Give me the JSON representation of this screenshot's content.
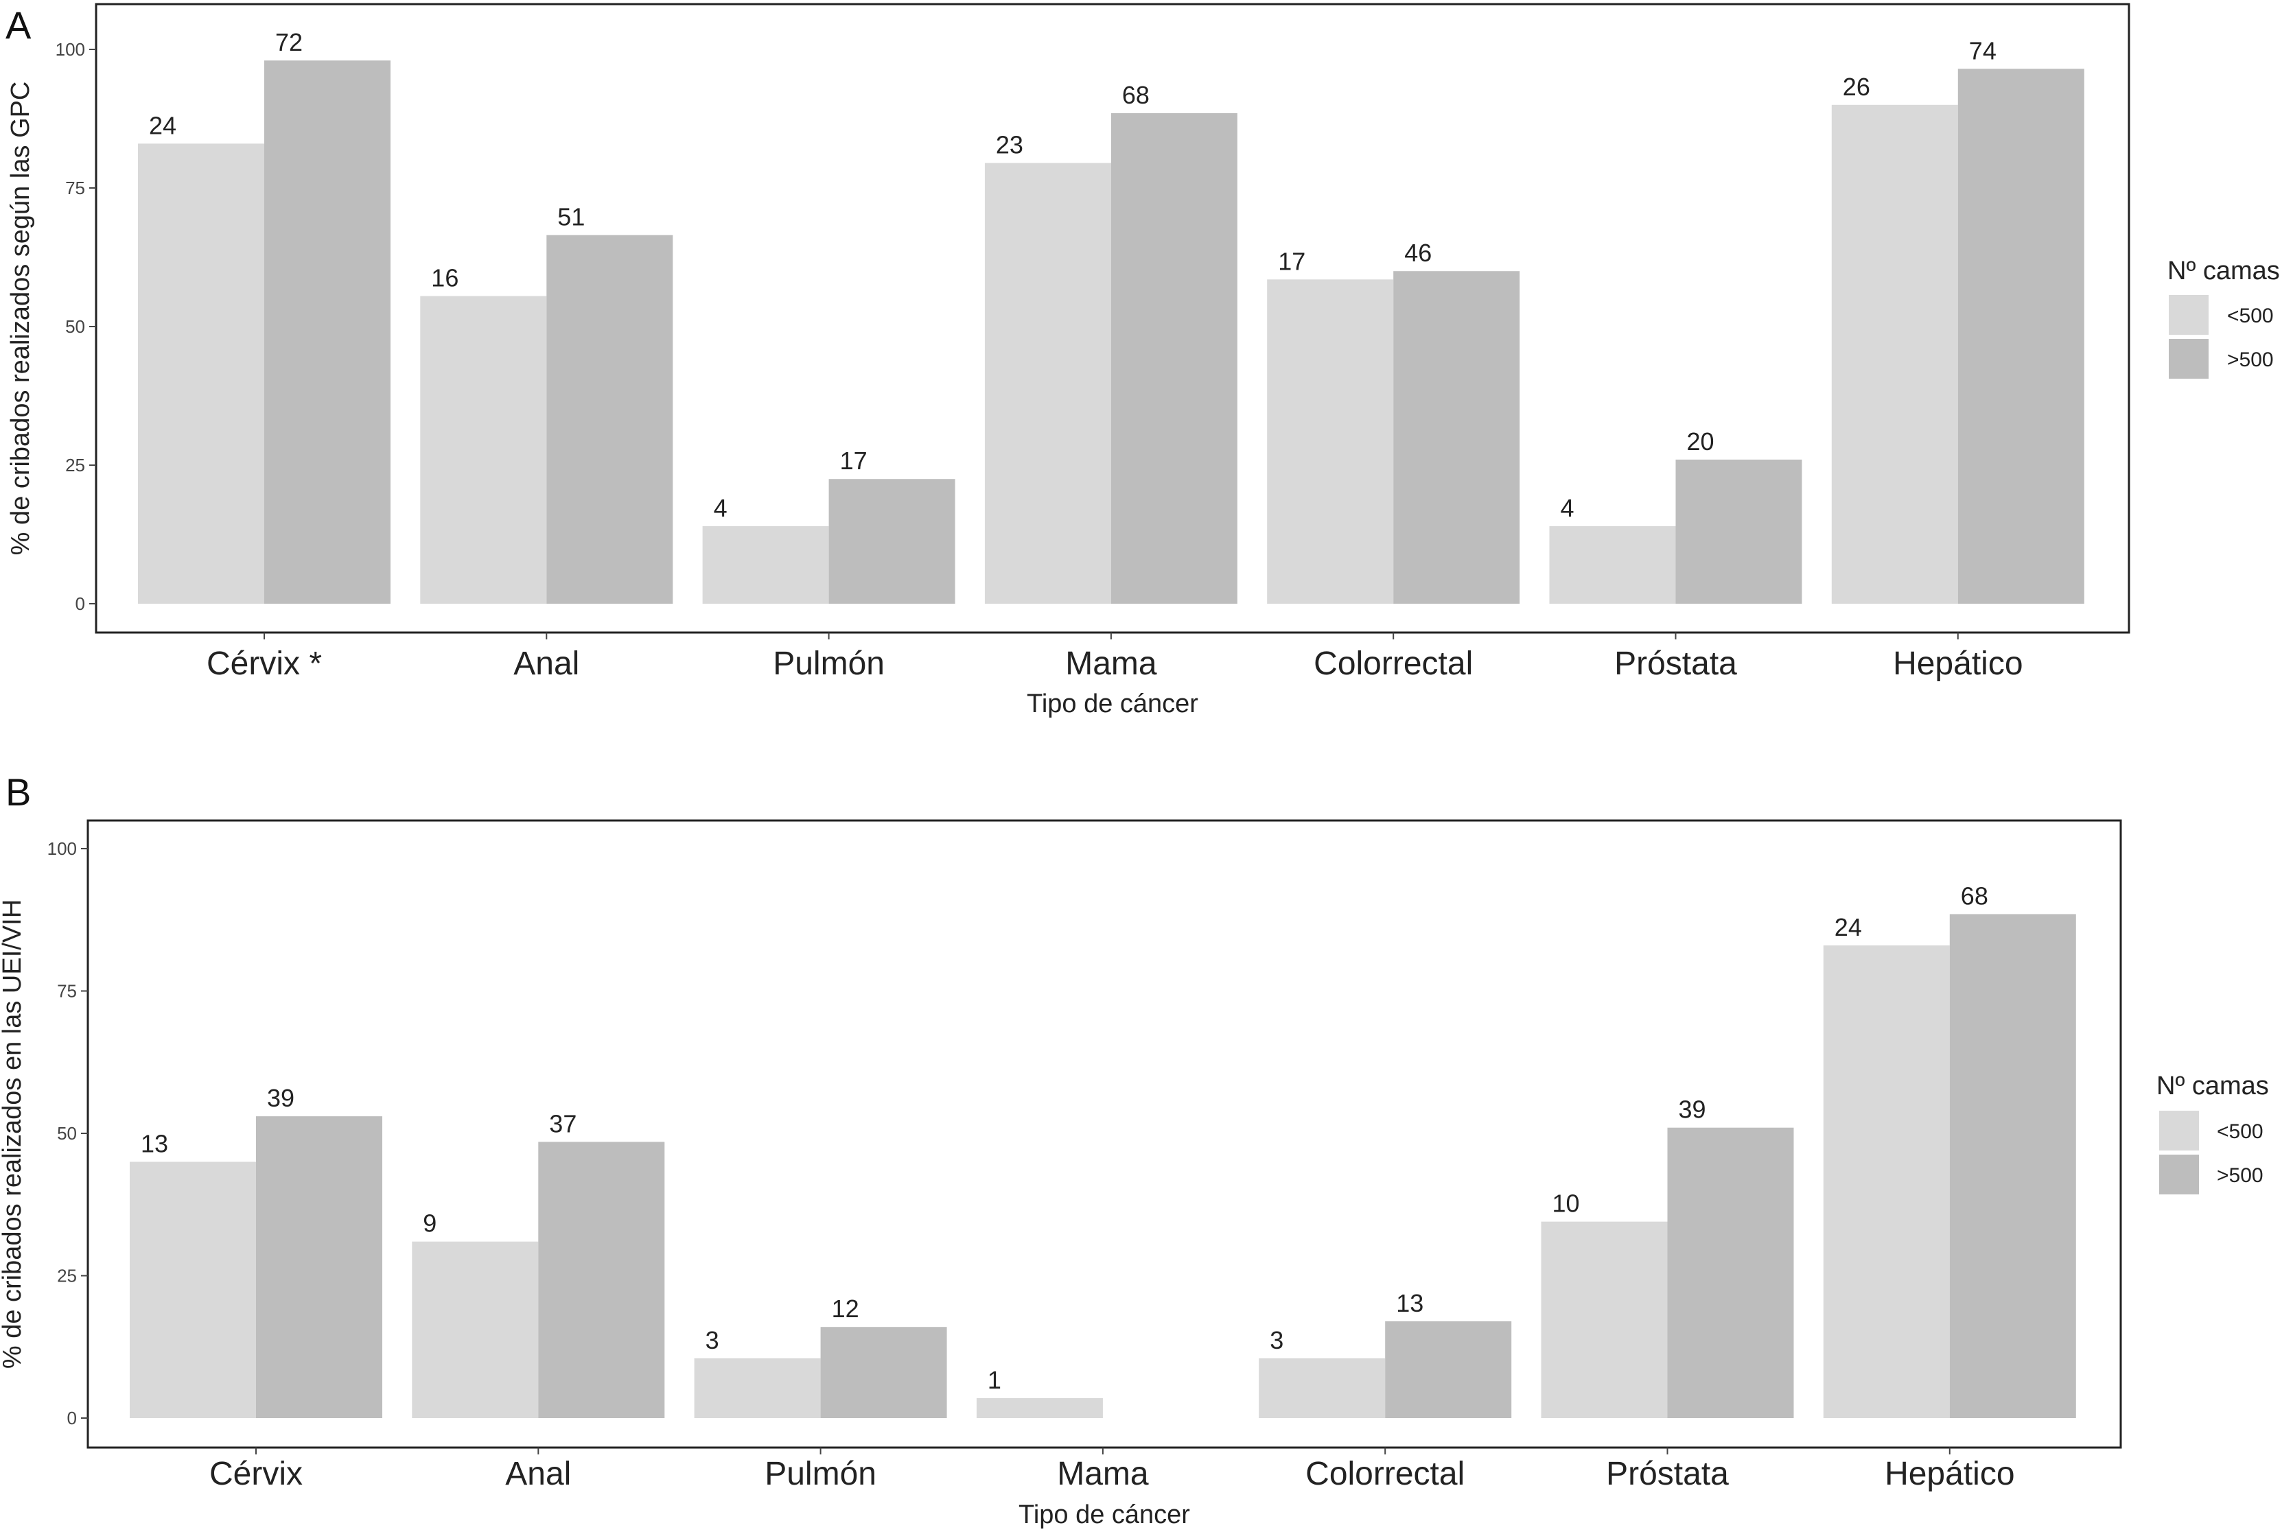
{
  "chart_data": [
    {
      "panel": "A",
      "type": "bar",
      "categories": [
        "Cérvix *",
        "Anal",
        "Pulmón",
        "Mama",
        "Colorrectal",
        "Próstata",
        "Hepático"
      ],
      "series": [
        {
          "name": "<500",
          "values": [
            83,
            55.5,
            14,
            79.5,
            58.5,
            14,
            90
          ],
          "labels": [
            "24",
            "16",
            "4",
            "23",
            "17",
            "4",
            "26"
          ]
        },
        {
          "name": ">500",
          "values": [
            98,
            66.5,
            22.5,
            88.5,
            60,
            26,
            96.5
          ],
          "labels": [
            "72",
            "51",
            "17",
            "68",
            "46",
            "20",
            "74"
          ]
        }
      ],
      "xlabel": "Tipo de cáncer",
      "ylabel": "% de cribados realizados según las GPC",
      "ylim": [
        0,
        100
      ],
      "yticks": [
        0,
        25,
        50,
        75,
        100
      ],
      "legend_title": "Nº camas",
      "legend_position": "right",
      "grid": false
    },
    {
      "panel": "B",
      "type": "bar",
      "categories": [
        "Cérvix",
        "Anal",
        "Pulmón",
        "Mama",
        "Colorrectal",
        "Próstata",
        "Hepático"
      ],
      "series": [
        {
          "name": "<500",
          "values": [
            45,
            31,
            10.5,
            3.5,
            10.5,
            34.5,
            83
          ],
          "labels": [
            "13",
            "9",
            "3",
            "1",
            "3",
            "10",
            "24"
          ]
        },
        {
          "name": ">500",
          "values": [
            53,
            48.5,
            16,
            0,
            17,
            51,
            88.5
          ],
          "labels": [
            "39",
            "37",
            "12",
            "",
            "13",
            "39",
            "68"
          ]
        }
      ],
      "xlabel": "Tipo de cáncer",
      "ylabel": "% de cribados realizados en las UEI/VIH",
      "ylim": [
        0,
        100
      ],
      "yticks": [
        0,
        25,
        50,
        75,
        100
      ],
      "legend_title": "Nº camas",
      "legend_position": "right",
      "grid": false
    }
  ],
  "colors": {
    "<500": "#d9d9d9",
    ">500": "#bdbdbd",
    "axis": "#222222"
  }
}
